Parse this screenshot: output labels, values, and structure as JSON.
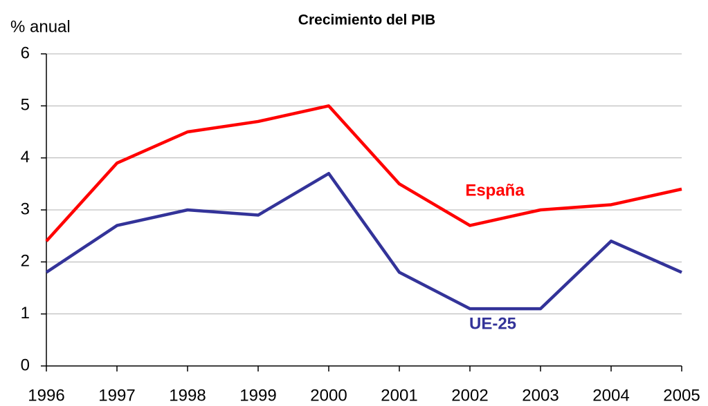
{
  "chart_data": {
    "type": "line",
    "title": "Crecimiento del PIB",
    "y_axis_label": "% anual",
    "categories": [
      "1996",
      "1997",
      "1998",
      "1999",
      "2000",
      "2001",
      "2002",
      "2003",
      "2004",
      "2005"
    ],
    "series": [
      {
        "name": "España",
        "color": "#ff0000",
        "values": [
          2.4,
          3.9,
          4.5,
          4.7,
          5.0,
          3.5,
          2.7,
          3.0,
          3.1,
          3.4
        ]
      },
      {
        "name": "UE-25",
        "color": "#333399",
        "values": [
          1.8,
          2.7,
          3.0,
          2.9,
          3.7,
          1.8,
          1.1,
          1.1,
          2.4,
          1.8
        ]
      }
    ],
    "ylim": [
      0,
      6
    ],
    "yticks": [
      0,
      1,
      2,
      3,
      4,
      5,
      6
    ],
    "grid": true
  }
}
